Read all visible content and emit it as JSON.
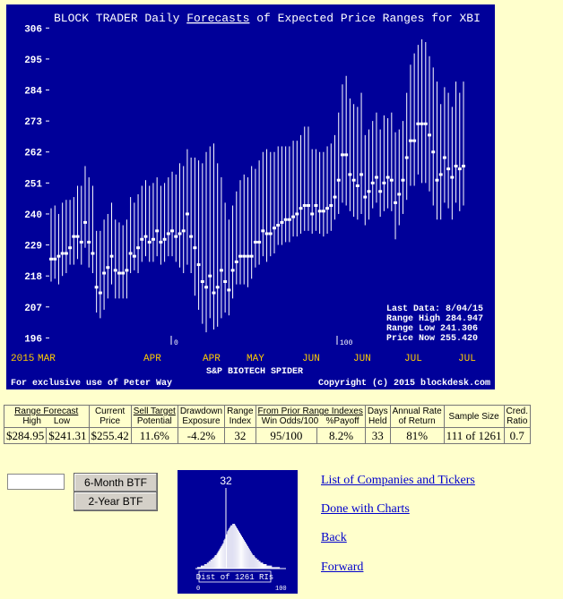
{
  "chart_data": {
    "type": "range-bar",
    "title": "BLOCK TRADER Daily Forecasts of Expected Price Ranges for  XBI",
    "title_parts": {
      "pre": "BLOCK TRADER Daily ",
      "link": "Forecasts",
      "post": " of Expected Price Ranges for  XBI"
    },
    "subtitle": "S&P BIOTECH SPIDER",
    "yticks": [
      "306",
      "295",
      "284",
      "273",
      "262",
      "251",
      "240",
      "229",
      "218",
      "207",
      "196"
    ],
    "ylim": [
      192,
      308
    ],
    "xlabels": [
      "2015",
      "MAR",
      "APR",
      "APR",
      "MAY",
      "JUN",
      "JUN",
      "JUL",
      "JUL"
    ],
    "markers": [
      "0",
      "100"
    ],
    "info": {
      "last_data": "Last Data:  8/04/15",
      "range_high": "Range High  284.947",
      "range_low": "Range Low   241.306",
      "price_now": "Price Now   255.420"
    },
    "footer_left": "For exclusive use of Peter Way",
    "footer_right": "Copyright (c) 2015 blockdesk.com",
    "series": [
      {
        "name": "price",
        "values": [
          224,
          224,
          225,
          226,
          226,
          228,
          232,
          232,
          230,
          237,
          230,
          226,
          214,
          212,
          219,
          221,
          225,
          220,
          219,
          219,
          220,
          226,
          225,
          228,
          231,
          232,
          230,
          231,
          234,
          230,
          231,
          233,
          234,
          232,
          233,
          234,
          240,
          232,
          228,
          222,
          216,
          214,
          218,
          212,
          214,
          220,
          216,
          213,
          220,
          223,
          225,
          225,
          225,
          225,
          230,
          230,
          234,
          233,
          233,
          235,
          236,
          237,
          238,
          238,
          239,
          240,
          242,
          243,
          243,
          240,
          243,
          241,
          241,
          242,
          243,
          246,
          252,
          261,
          261,
          254,
          252,
          250,
          254,
          246,
          248,
          251,
          253,
          248,
          251,
          253,
          252,
          244,
          247,
          252,
          260,
          266,
          266,
          272,
          272,
          272,
          268,
          262,
          252,
          254,
          260,
          256,
          253,
          257,
          256,
          257
        ]
      },
      {
        "name": "high",
        "values": [
          242,
          243,
          240,
          244,
          245,
          245,
          246,
          250,
          250,
          257,
          253,
          250,
          234,
          234,
          238,
          240,
          244,
          238,
          237,
          236,
          238,
          246,
          244,
          247,
          250,
          252,
          250,
          251,
          253,
          250,
          251,
          253,
          255,
          254,
          258,
          257,
          263,
          260,
          260,
          259,
          258,
          262,
          264,
          265,
          258,
          253,
          244,
          238,
          243,
          248,
          252,
          254,
          253,
          257,
          256,
          259,
          262,
          263,
          262,
          262,
          264,
          264,
          264,
          264,
          266,
          266,
          268,
          271,
          271,
          263,
          263,
          262,
          262,
          264,
          265,
          268,
          276,
          286,
          289,
          281,
          279,
          278,
          283,
          268,
          270,
          273,
          276,
          270,
          275,
          274,
          276,
          269,
          270,
          273,
          283,
          293,
          297,
          300,
          302,
          301,
          296,
          292,
          287,
          279,
          285,
          283,
          278,
          287,
          283,
          287
        ]
      },
      {
        "name": "low",
        "values": [
          216,
          217,
          215,
          218,
          219,
          222,
          222,
          224,
          222,
          228,
          221,
          219,
          205,
          203,
          206,
          210,
          215,
          210,
          210,
          210,
          210,
          219,
          220,
          219,
          223,
          225,
          223,
          223,
          225,
          222,
          223,
          225,
          225,
          223,
          221,
          219,
          222,
          219,
          211,
          206,
          201,
          198,
          203,
          199,
          200,
          203,
          205,
          204,
          210,
          215,
          215,
          215,
          214,
          217,
          221,
          222,
          225,
          223,
          225,
          226,
          229,
          229,
          230,
          230,
          232,
          232,
          233,
          234,
          234,
          233,
          234,
          233,
          232,
          233,
          234,
          238,
          240,
          244,
          243,
          241,
          239,
          238,
          240,
          236,
          238,
          242,
          244,
          239,
          241,
          242,
          241,
          231,
          236,
          240,
          245,
          250,
          250,
          254,
          251,
          251,
          248,
          243,
          238,
          238,
          244,
          242,
          238,
          244,
          241,
          243
        ]
      }
    ]
  },
  "stats": {
    "headers": {
      "range_forecast": "Range Forecast",
      "high": "High",
      "low": "Low",
      "current": "Current",
      "price": "Price",
      "sell_target": "Sell Target",
      "potential": "Potential",
      "drawdown": "Drawdown",
      "exposure": "Exposure",
      "range": "Range",
      "index": "Index",
      "from_prior": "From Prior Range Indexes",
      "win_odds": "Win Odds/100",
      "payoff": "%Payoff",
      "days": "Days",
      "held": "Held",
      "annual_rate": "Annual Rate",
      "of_return": "of Return",
      "sample_size": "Sample Size",
      "cred": "Cred.",
      "ratio": "Ratio"
    },
    "values": {
      "high": "$284.95",
      "low": "$241.31",
      "current_price": "$255.42",
      "sell_target": "11.6%",
      "drawdown": "-4.2%",
      "range_index": "32",
      "win_odds": "95/100",
      "payoff": "8.2%",
      "days_held": "33",
      "annual_rate": "81%",
      "sample_size": "111 of 1261",
      "cred_ratio": "0.7"
    }
  },
  "controls": {
    "btn_6month": "6-Month BTF",
    "btn_2year": "2-Year BTF"
  },
  "histogram": {
    "range_index": "32",
    "caption": "Dist of 1261 RIs",
    "tick_low": "0",
    "tick_high": "100",
    "counts": [
      1,
      1,
      1,
      1,
      2,
      2,
      2,
      2,
      3,
      3,
      3,
      4,
      4,
      5,
      5,
      6,
      6,
      7,
      7,
      8,
      9,
      9,
      10,
      11,
      12,
      13,
      14,
      15,
      16,
      17,
      19,
      20,
      22,
      23,
      25,
      26,
      27,
      28,
      29,
      29,
      30,
      30,
      30,
      29,
      28,
      27,
      26,
      25,
      24,
      23,
      22,
      21,
      20,
      19,
      18,
      17,
      16,
      15,
      14,
      13,
      12,
      11,
      10,
      9,
      9,
      8,
      7,
      7,
      6,
      6,
      5,
      5,
      4,
      4,
      4,
      3,
      3,
      3,
      3,
      2,
      2,
      2,
      2,
      2,
      2,
      1,
      1,
      1,
      1,
      1,
      1,
      1,
      1,
      1,
      0,
      0,
      0,
      0,
      0,
      0
    ]
  },
  "links": {
    "companies": "List of Companies and Tickers",
    "done": "Done with Charts",
    "back": "Back",
    "forward": "Forward"
  }
}
